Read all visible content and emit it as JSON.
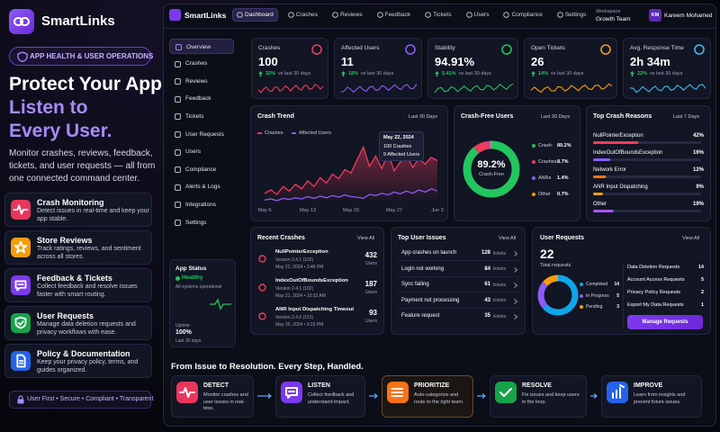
{
  "brand": {
    "name": "SmartLinks",
    "badge": "APP HEALTH & USER OPERATIONS"
  },
  "hero": {
    "line1": "Protect Your App.",
    "line2": "Listen to",
    "line3": "Every User.",
    "description": "Monitor crashes, reviews, feedback, tickets, and user requests — all from one connected command center."
  },
  "features": [
    {
      "title": "Crash Monitoring",
      "desc": "Detect issues in real-time and keep your app stable."
    },
    {
      "title": "Store Reviews",
      "desc": "Track ratings, reviews, and sentiment across all stores."
    },
    {
      "title": "Feedback & Tickets",
      "desc": "Collect feedback and resolve issues faster with smart routing."
    },
    {
      "title": "User Requests",
      "desc": "Manage data deletion requests and privacy workflows with ease."
    },
    {
      "title": "Policy & Documentation",
      "desc": "Keep your privacy policy, terms, and guides organized."
    }
  ],
  "tagline": "User First • Secure • Compliant • Transparent",
  "nav": {
    "logo": "SmartLinks",
    "tabs": [
      "Dashboard",
      "Crashes",
      "Reviews",
      "Feedback",
      "Tickets",
      "Users",
      "Compliance",
      "Settings"
    ],
    "workspace_label": "Workspace",
    "workspace": "Growth Team",
    "initials": "KM",
    "user": "Kareem Mohamed"
  },
  "sidebar": [
    "Overview",
    "Crashes",
    "Reviews",
    "Feedback",
    "Tickets",
    "User Requests",
    "Users",
    "Compliance",
    "Alerts & Logs",
    "Integrations",
    "Settings"
  ],
  "app_status": {
    "title": "App Status",
    "status": "Healthy",
    "detail": "All systems operational",
    "uptime_label": "Uptime",
    "uptime": "100%",
    "period": "Last 30 days"
  },
  "kpis": [
    {
      "title": "Crashes",
      "value": "100",
      "delta": "32%",
      "note": "vs last 30 days"
    },
    {
      "title": "Affected Users",
      "value": "11",
      "delta": "18%",
      "note": "vs last 30 days"
    },
    {
      "title": "Stability",
      "value": "94.91%",
      "delta": "5.41%",
      "note": "vs last 30 days"
    },
    {
      "title": "Open Tickets",
      "value": "26",
      "delta": "14%",
      "note": "vs last 30 days"
    },
    {
      "title": "Avg. Response Time",
      "value": "2h 34m",
      "delta": "22%",
      "note": "vs last 30 days"
    }
  ],
  "crash_trend": {
    "type": "line",
    "title": "Crash Trend",
    "period": "Last 30 Days",
    "categories": [
      "May 6",
      null,
      null,
      null,
      null,
      null,
      null,
      "May 13",
      null,
      null,
      null,
      null,
      null,
      null,
      "May 20",
      null,
      null,
      null,
      null,
      null,
      null,
      "May 27",
      null,
      null,
      null,
      null,
      null,
      null,
      "Jun 3"
    ],
    "series": [
      {
        "name": "Crashes",
        "color": "#ef3b5d",
        "values": [
          18,
          24,
          16,
          30,
          22,
          34,
          26,
          40,
          30,
          46,
          36,
          52,
          44,
          60,
          54,
          78,
          100,
          66,
          84,
          62,
          90,
          58,
          74,
          86,
          64,
          80,
          70,
          82,
          76
        ]
      },
      {
        "name": "Affected Users",
        "color": "#8b5cf6",
        "values": [
          6,
          8,
          5,
          9,
          7,
          10,
          8,
          12,
          9,
          13,
          10,
          14,
          11,
          15,
          12,
          11,
          9,
          16,
          14,
          18,
          15,
          20,
          17,
          22,
          18,
          24,
          20,
          26,
          22
        ]
      }
    ],
    "ylim": [
      0,
      120
    ],
    "tooltip": {
      "date": "May 22, 2024",
      "crashes": "100 Crashes",
      "affected": "9 Affected Users"
    }
  },
  "crash_free": {
    "type": "pie",
    "title": "Crash-Free Users",
    "period": "Last 30 Days",
    "center": "89.2%",
    "center_label": "Crash-Free",
    "categories": [
      "Crash-",
      "Crashes",
      "ANRs",
      "Other"
    ],
    "values": [
      89.2,
      8.7,
      1.4,
      0.7
    ],
    "value_labels": [
      "89.2%",
      "8.7%",
      "1.4%",
      "0.7%"
    ],
    "colors": [
      "#22c55e",
      "#ef3b5d",
      "#8b5cf6",
      "#f59e0b"
    ]
  },
  "top_crash_reasons": {
    "type": "bar",
    "title": "Top Crash Reasons",
    "period": "Last 7 Days",
    "xlim": [
      0,
      100
    ],
    "items": [
      {
        "name": "NullPointerException",
        "value": 42,
        "label": "42%",
        "color": "#ef3b5d"
      },
      {
        "name": "IndexOutOfBoundsException",
        "value": 16,
        "label": "16%",
        "color": "#8b5cf6"
      },
      {
        "name": "Network Error",
        "value": 12,
        "label": "12%",
        "color": "#f97316"
      },
      {
        "name": "ANR Input Dispatching",
        "value": 9,
        "label": "9%",
        "color": "#f59e0b"
      },
      {
        "name": "Other",
        "value": 19,
        "label": "19%",
        "color": "#a855f7"
      }
    ]
  },
  "recent_crashes": {
    "title": "Recent Crashes",
    "action": "View All",
    "unit": "Users",
    "items": [
      {
        "name": "NullPointerException",
        "version": "Version 2.4.1 (102)",
        "time": "May 22, 2024 • 3:46 PM",
        "count": 432
      },
      {
        "name": "IndexOutOfBoundsException",
        "version": "Version 2.4.1 (102)",
        "time": "May 21, 2024 • 10:32 AM",
        "count": 187
      },
      {
        "name": "ANR Input Dispatching Timeout",
        "version": "Version 2.4.0 (101)",
        "time": "May 20, 2024 • 9:15 PM",
        "count": 93
      }
    ]
  },
  "top_user_issues": {
    "title": "Top User Issues",
    "action": "View All",
    "unit": "tickets",
    "items": [
      {
        "name": "App crashes on launch",
        "count": 128
      },
      {
        "name": "Login not working",
        "count": 84
      },
      {
        "name": "Sync failing",
        "count": 61
      },
      {
        "name": "Payment not processing",
        "count": 43
      },
      {
        "name": "Feature request",
        "count": 35
      }
    ]
  },
  "user_requests": {
    "type": "pie",
    "title": "User Requests",
    "action": "View All",
    "total": 22,
    "total_label": "Total requests",
    "categories": [
      "Completed",
      "In Progress",
      "Pending"
    ],
    "values": [
      14,
      5,
      3
    ],
    "colors": [
      "#0ea5e9",
      "#8b5cf6",
      "#f59e0b"
    ],
    "list": [
      {
        "name": "Data Deletion Requests",
        "count": 14
      },
      {
        "name": "Account Access Requests",
        "count": 5
      },
      {
        "name": "Privacy Policy Requests",
        "count": 2
      },
      {
        "name": "Export My Data Requests",
        "count": 1
      }
    ],
    "button": "Manage Requests"
  },
  "workflow": {
    "title": "From Issue to Resolution. Every Step, Handled.",
    "steps": [
      {
        "name": "DETECT",
        "desc": "Monitor crashes and user issues in real-time."
      },
      {
        "name": "LISTEN",
        "desc": "Collect feedback and understand impact."
      },
      {
        "name": "PRIORITIZE",
        "desc": "Auto-categorize and route to the right team."
      },
      {
        "name": "RESOLVE",
        "desc": "Fix issues and keep users in the loop."
      },
      {
        "name": "IMPROVE",
        "desc": "Learn from insights and prevent future issues."
      }
    ]
  }
}
